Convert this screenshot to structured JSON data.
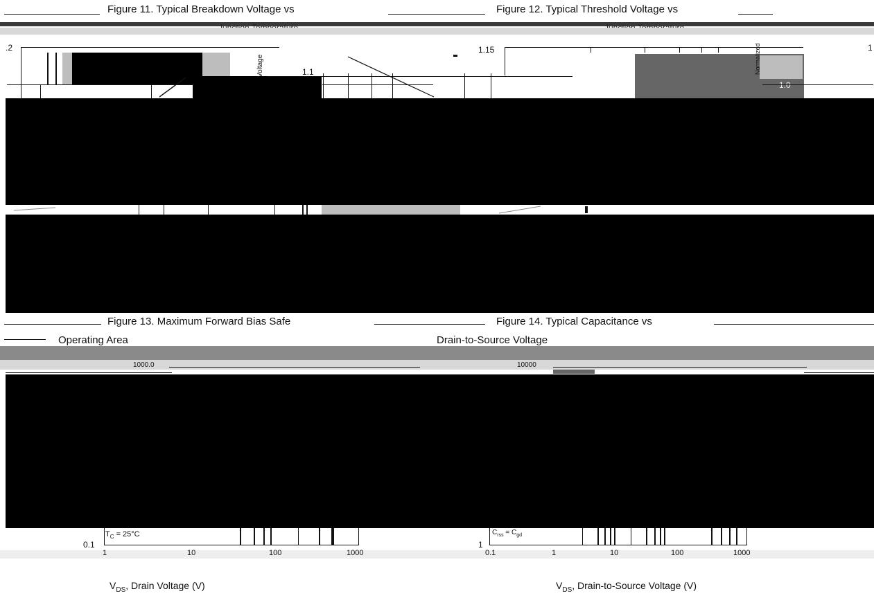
{
  "figures": {
    "fig11": {
      "title": "Figure 11. Typical Breakdown Voltage vs",
      "subtitle": "Junction Temperature",
      "ytick_top": ".2",
      "yval": "1.1",
      "ylabel": "Voltage"
    },
    "fig12": {
      "title": "Figure 12. Typical Threshold Voltage vs",
      "subtitle": "Junction Temperature",
      "ytick_top": "1.15",
      "right_tick": "1",
      "side_label": "Normalized",
      "side_val": "1.0"
    },
    "fig13": {
      "title": "Figure 13. Maximum Forward Bias Safe",
      "subtitle": "Operating Area",
      "ytick_top": "1000.0",
      "ytick_bottom": "0.1",
      "annotation": "T",
      "annotation_sub": "C",
      "annotation_rest": " = 25°C",
      "xticks": [
        "1",
        "10",
        "100",
        "1000"
      ],
      "xlabel": "V",
      "xlabel_sub": "DS",
      "xlabel_rest": ", Drain Voltage (V)"
    },
    "fig14": {
      "title": "Figure 14. Typical Capacitance vs",
      "subtitle": "Drain-to-Source Voltage",
      "ytick_top": "10000",
      "ytick_bottom": "1",
      "annotation": "C",
      "annotation_sub": "rss",
      "annotation_mid": " = C",
      "annotation_sub2": "gd",
      "xticks": [
        "0.1",
        "1",
        "10",
        "100",
        "1000"
      ],
      "xlabel": "V",
      "xlabel_sub": "DS",
      "xlabel_rest": ", Drain-to-Source Voltage (V)"
    }
  },
  "colors": {
    "dark": "#111111",
    "gray": "#8a8a8a",
    "midgray": "#666666",
    "lightgray": "#bdbdbd"
  },
  "chart_data": [
    {
      "type": "line",
      "title": "Figure 11. Typical Breakdown Voltage vs",
      "subtitle": "Junction Temperature",
      "ylabel": "Voltage",
      "yticks": [
        ".2",
        "1.1"
      ],
      "series": []
    },
    {
      "type": "line",
      "title": "Figure 12. Typical Threshold Voltage vs",
      "subtitle": "Junction Temperature",
      "yticks": [
        "1.15",
        "1"
      ],
      "series": []
    },
    {
      "type": "line",
      "title": "Figure 13. Maximum Forward Bias Safe",
      "subtitle": "Operating Area",
      "xlabel": "VDS, Drain Voltage (V)",
      "xticks": [
        "1",
        "10",
        "100",
        "1000"
      ],
      "yticks": [
        "1000.0",
        "0.1"
      ],
      "xscale": "log",
      "yscale": "log",
      "series": []
    },
    {
      "type": "line",
      "title": "Figure 14. Typical Capacitance vs",
      "subtitle": "Drain-to-Source Voltage",
      "xlabel": "VDS, Drain-to-Source Voltage (V)",
      "xticks": [
        "0.1",
        "1",
        "10",
        "100",
        "1000"
      ],
      "yticks": [
        "10000",
        "1"
      ],
      "xscale": "log",
      "yscale": "log",
      "series": []
    }
  ]
}
